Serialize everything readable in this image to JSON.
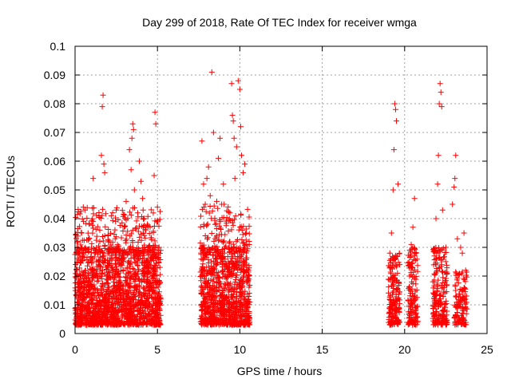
{
  "chart_data": {
    "type": "scatter",
    "title": "Day 299 of 2018, Rate Of TEC Index for receiver wmga",
    "xlabel": "GPS time / hours",
    "ylabel": "ROTI / TECUs",
    "xlim": [
      0,
      25
    ],
    "ylim": [
      0,
      0.1
    ],
    "xticks": [
      0,
      5,
      10,
      15,
      20,
      25
    ],
    "yticks": [
      0,
      0.01,
      0.02,
      0.03,
      0.04,
      0.05,
      0.06,
      0.07,
      0.08,
      0.09,
      0.1
    ],
    "xtick_labels": [
      "0",
      "5",
      "10",
      "15",
      "20",
      "25"
    ],
    "ytick_labels": [
      "0",
      "0.01",
      "0.02",
      "0.03",
      "0.04",
      "0.05",
      "0.06",
      "0.07",
      "0.08",
      "0.09",
      "0.1"
    ],
    "grid": true,
    "marker": "+",
    "colors": {
      "points": "#ff0000",
      "grid": "#a0a0a0",
      "axes": "#000000"
    },
    "series": [
      {
        "points": [
          [
            0.1,
            0.006
          ],
          [
            0.2,
            0.012
          ],
          [
            0.3,
            0.02
          ],
          [
            0.4,
            0.035
          ],
          [
            0.5,
            0.044
          ],
          [
            0.6,
            0.043
          ],
          [
            0.7,
            0.015
          ],
          [
            0.8,
            0.008
          ],
          [
            1.0,
            0.03
          ],
          [
            1.1,
            0.054
          ],
          [
            1.2,
            0.022
          ],
          [
            1.3,
            0.01
          ],
          [
            1.5,
            0.036
          ],
          [
            1.6,
            0.062
          ],
          [
            1.65,
            0.079
          ],
          [
            1.7,
            0.083
          ],
          [
            1.75,
            0.059
          ],
          [
            1.8,
            0.056
          ],
          [
            1.9,
            0.02
          ],
          [
            2.0,
            0.034
          ],
          [
            2.2,
            0.041
          ],
          [
            2.3,
            0.015
          ],
          [
            2.5,
            0.043
          ],
          [
            2.7,
            0.028
          ],
          [
            2.9,
            0.012
          ],
          [
            3.1,
            0.046
          ],
          [
            3.3,
            0.064
          ],
          [
            3.4,
            0.057
          ],
          [
            3.45,
            0.068
          ],
          [
            3.5,
            0.073
          ],
          [
            3.55,
            0.071
          ],
          [
            3.6,
            0.05
          ],
          [
            3.8,
            0.042
          ],
          [
            3.9,
            0.06
          ],
          [
            4.0,
            0.053
          ],
          [
            4.1,
            0.047
          ],
          [
            4.3,
            0.037
          ],
          [
            4.5,
            0.024
          ],
          [
            4.6,
            0.016
          ],
          [
            4.8,
            0.055
          ],
          [
            4.85,
            0.077
          ],
          [
            4.9,
            0.073
          ],
          [
            5.0,
            0.044
          ],
          [
            5.1,
            0.03
          ],
          [
            5.2,
            0.012
          ],
          [
            7.7,
            0.067
          ],
          [
            7.8,
            0.052
          ],
          [
            7.9,
            0.045
          ],
          [
            8.0,
            0.054
          ],
          [
            8.1,
            0.058
          ],
          [
            8.2,
            0.048
          ],
          [
            8.3,
            0.091
          ],
          [
            8.4,
            0.07
          ],
          [
            8.5,
            0.038
          ],
          [
            8.6,
            0.046
          ],
          [
            8.7,
            0.061
          ],
          [
            8.8,
            0.068
          ],
          [
            8.9,
            0.045
          ],
          [
            9.0,
            0.052
          ],
          [
            9.1,
            0.03
          ],
          [
            9.2,
            0.012
          ],
          [
            9.3,
            0.025
          ],
          [
            9.4,
            0.042
          ],
          [
            9.5,
            0.087
          ],
          [
            9.55,
            0.076
          ],
          [
            9.6,
            0.074
          ],
          [
            9.65,
            0.068
          ],
          [
            9.7,
            0.054
          ],
          [
            9.8,
            0.065
          ],
          [
            9.9,
            0.088
          ],
          [
            10.0,
            0.085
          ],
          [
            10.05,
            0.072
          ],
          [
            10.1,
            0.062
          ],
          [
            10.2,
            0.056
          ],
          [
            10.3,
            0.059
          ],
          [
            10.4,
            0.035
          ],
          [
            10.5,
            0.02
          ],
          [
            19.1,
            0.028
          ],
          [
            19.2,
            0.035
          ],
          [
            19.3,
            0.05
          ],
          [
            19.35,
            0.064
          ],
          [
            19.4,
            0.08
          ],
          [
            19.45,
            0.078
          ],
          [
            19.5,
            0.074
          ],
          [
            19.6,
            0.052
          ],
          [
            19.7,
            0.024
          ],
          [
            20.3,
            0.02
          ],
          [
            20.4,
            0.031
          ],
          [
            20.5,
            0.037
          ],
          [
            20.6,
            0.047
          ],
          [
            20.7,
            0.028
          ],
          [
            21.8,
            0.029
          ],
          [
            21.9,
            0.04
          ],
          [
            22.0,
            0.052
          ],
          [
            22.05,
            0.062
          ],
          [
            22.1,
            0.08
          ],
          [
            22.15,
            0.087
          ],
          [
            22.2,
            0.084
          ],
          [
            22.25,
            0.079
          ],
          [
            22.3,
            0.043
          ],
          [
            22.5,
            0.03
          ],
          [
            22.9,
            0.045
          ],
          [
            23.0,
            0.051
          ],
          [
            23.05,
            0.054
          ],
          [
            23.1,
            0.062
          ],
          [
            23.2,
            0.033
          ],
          [
            23.4,
            0.03
          ],
          [
            23.5,
            0.028
          ],
          [
            23.6,
            0.035
          ],
          [
            23.7,
            0.022
          ]
        ],
        "clusters": [
          {
            "x": [
              0.0,
              5.2
            ],
            "y": [
              0.003,
              0.03
            ],
            "count": 1600
          },
          {
            "x": [
              0.0,
              5.2
            ],
            "y": [
              0.028,
              0.044
            ],
            "count": 220
          },
          {
            "x": [
              7.6,
              10.6
            ],
            "y": [
              0.003,
              0.03
            ],
            "count": 900
          },
          {
            "x": [
              7.6,
              10.6
            ],
            "y": [
              0.028,
              0.045
            ],
            "count": 130
          },
          {
            "x": [
              19.0,
              19.7
            ],
            "y": [
              0.003,
              0.028
            ],
            "count": 170
          },
          {
            "x": [
              20.2,
              20.8
            ],
            "y": [
              0.003,
              0.03
            ],
            "count": 130
          },
          {
            "x": [
              21.7,
              22.6
            ],
            "y": [
              0.003,
              0.03
            ],
            "count": 200
          },
          {
            "x": [
              23.0,
              23.8
            ],
            "y": [
              0.003,
              0.022
            ],
            "count": 120
          }
        ]
      }
    ]
  }
}
